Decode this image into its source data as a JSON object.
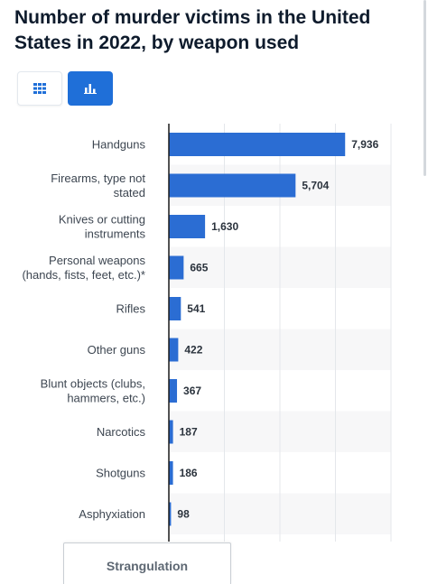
{
  "title": "Number of murder victims in the United States in 2022, by weapon used",
  "toggle": {
    "table_icon": "grid-icon",
    "bar_icon": "bar-chart-icon",
    "active": "bar"
  },
  "colors": {
    "bar": "#2b6dd3",
    "active_button": "#1f6fd8",
    "row_stripe": "#f7f7f8",
    "axis": "#1a1a1a"
  },
  "chart_data": {
    "type": "bar",
    "orientation": "horizontal",
    "categories": [
      [
        "Handguns"
      ],
      [
        "Firearms, type not",
        "stated"
      ],
      [
        "Knives or cutting",
        "instruments"
      ],
      [
        "Personal weapons",
        "(hands, fists, feet, etc.)*"
      ],
      [
        "Rifles"
      ],
      [
        "Other guns"
      ],
      [
        "Blunt objects (clubs,",
        "hammers, etc.)"
      ],
      [
        "Narcotics"
      ],
      [
        "Shotguns"
      ],
      [
        "Asphyxiation"
      ]
    ],
    "values": [
      7936,
      5704,
      1630,
      665,
      541,
      422,
      367,
      187,
      186,
      98
    ],
    "value_labels": [
      "7,936",
      "5,704",
      "1,630",
      "665",
      "541",
      "422",
      "367",
      "187",
      "186",
      "98"
    ],
    "xlim": [
      0,
      10000
    ],
    "grid": true,
    "xlabel": "",
    "ylabel": ""
  },
  "bottom_tab": {
    "label": "Strangulation"
  }
}
